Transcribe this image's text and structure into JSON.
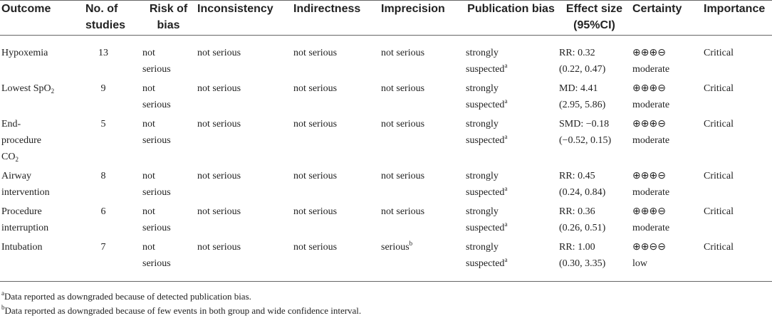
{
  "table": {
    "columns": [
      "Outcome",
      "No. of studies",
      "Risk of bias",
      "Inconsistency",
      "Indirectness",
      "Imprecision",
      "Publication bias",
      "Effect size (95%CI)",
      "Certainty",
      "Importance"
    ],
    "rows": [
      {
        "outcome": "Hypoxemia",
        "studies": 13,
        "risk_of_bias": "not serious",
        "inconsistency": "not serious",
        "indirectness": "not serious",
        "imprecision": "not serious",
        "publication_bias": "strongly suspected",
        "publication_bias_note": "a",
        "effect_estimate": "RR: 0.32",
        "effect_ci": "(0.22, 0.47)",
        "certainty_symbols": "⊕⊕⊕⊖",
        "certainty": "moderate",
        "importance": "Critical"
      },
      {
        "outcome": "Lowest SpO",
        "outcome_subscript": "2",
        "studies": 9,
        "risk_of_bias": "not serious",
        "inconsistency": "not serious",
        "indirectness": "not serious",
        "imprecision": "not serious",
        "publication_bias": "strongly suspected",
        "publication_bias_note": "a",
        "effect_estimate": "MD: 4.41",
        "effect_ci": "(2.95, 5.86)",
        "certainty_symbols": "⊕⊕⊕⊖",
        "certainty": "moderate",
        "importance": "Critical"
      },
      {
        "outcome": "End-procedure CO",
        "outcome_subscript": "2",
        "studies": 5,
        "risk_of_bias": "not serious",
        "inconsistency": "not serious",
        "indirectness": "not serious",
        "imprecision": "not serious",
        "publication_bias": "strongly suspected",
        "publication_bias_note": "a",
        "effect_estimate": "SMD: −0.18",
        "effect_ci": "(−0.52, 0.15)",
        "certainty_symbols": "⊕⊕⊕⊖",
        "certainty": "moderate",
        "importance": "Critical"
      },
      {
        "outcome": "Airway intervention",
        "studies": 8,
        "risk_of_bias": "not serious",
        "inconsistency": "not serious",
        "indirectness": "not serious",
        "imprecision": "not serious",
        "publication_bias": "strongly suspected",
        "publication_bias_note": "a",
        "effect_estimate": "RR: 0.45",
        "effect_ci": "(0.24, 0.84)",
        "certainty_symbols": "⊕⊕⊕⊖",
        "certainty": "moderate",
        "importance": "Critical"
      },
      {
        "outcome": "Procedure interruption",
        "studies": 6,
        "risk_of_bias": "not serious",
        "inconsistency": "not serious",
        "indirectness": "not serious",
        "imprecision": "not serious",
        "publication_bias": "strongly suspected",
        "publication_bias_note": "a",
        "effect_estimate": "RR: 0.36",
        "effect_ci": "(0.26, 0.51)",
        "certainty_symbols": "⊕⊕⊕⊖",
        "certainty": "moderate",
        "importance": "Critical"
      },
      {
        "outcome": "Intubation",
        "studies": 7,
        "risk_of_bias": "not serious",
        "inconsistency": "not serious",
        "indirectness": "not serious",
        "imprecision": "serious",
        "imprecision_note": "b",
        "publication_bias": "strongly suspected",
        "publication_bias_note": "a",
        "effect_estimate": "RR: 1.00",
        "effect_ci": "(0.30, 3.35)",
        "certainty_symbols": "⊕⊕⊖⊖",
        "certainty": "low",
        "importance": "Critical"
      }
    ]
  },
  "footnotes": [
    {
      "mark": "a",
      "text": "Data reported as downgraded because of detected publication bias."
    },
    {
      "mark": "b",
      "text": "Data reported as downgraded because of few events in both group and wide confidence interval."
    }
  ]
}
